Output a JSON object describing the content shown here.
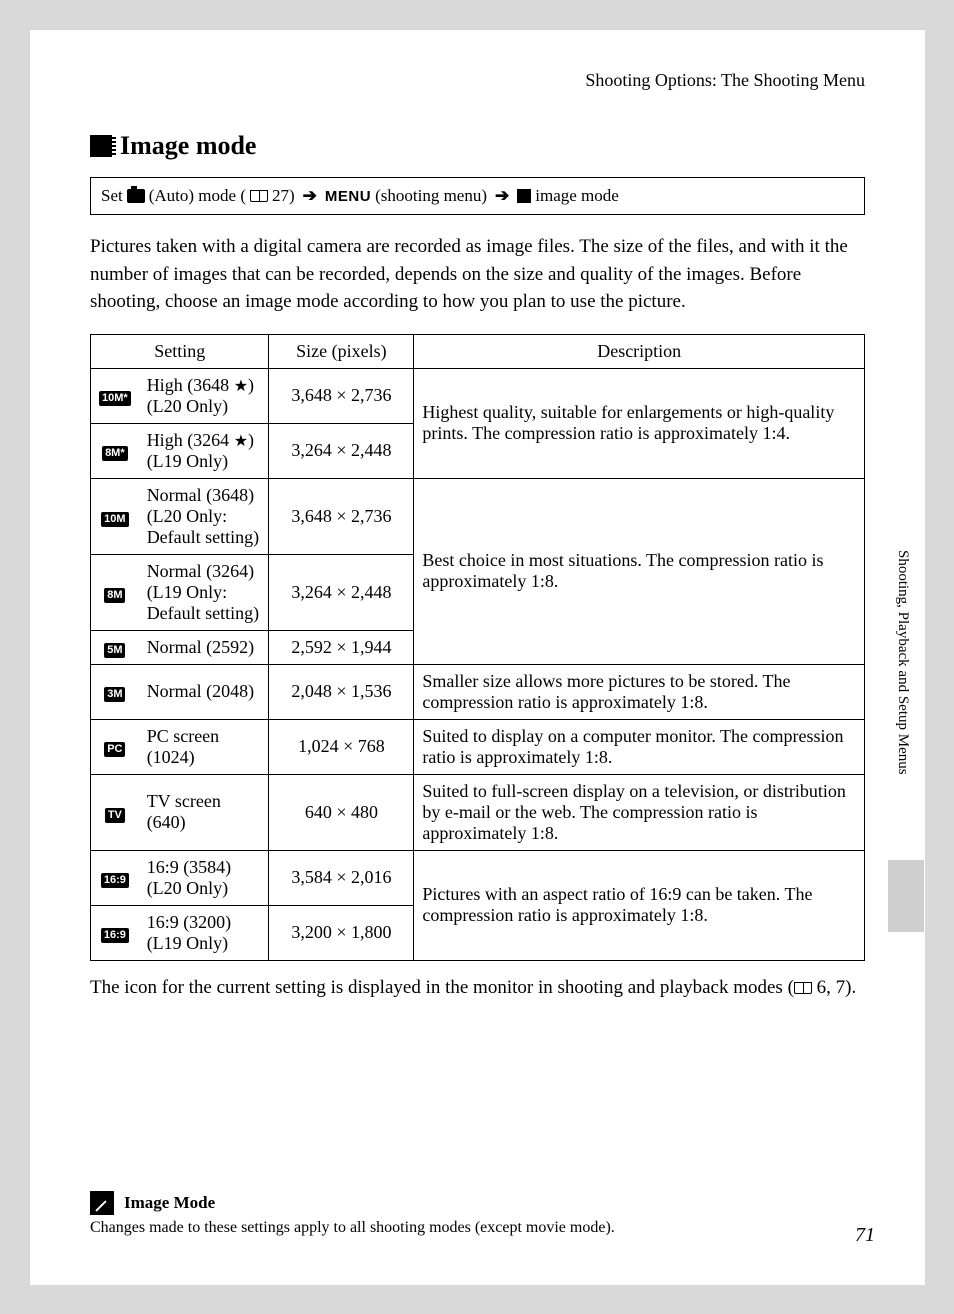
{
  "header": "Shooting Options: The Shooting Menu",
  "title": "Image mode",
  "nav": {
    "prefix": "Set",
    "auto_label": "(Auto) mode (",
    "page_ref": "27)",
    "menu_word": "MENU",
    "shooting_menu": "(shooting menu)",
    "image_mode": "image mode"
  },
  "intro": "Pictures taken with a digital camera are recorded as image files. The size of the files, and with it the number of images that can be recorded, depends on the size and quality of the images. Before shooting, choose an image mode according to how you plan to use the picture.",
  "table": {
    "headers": {
      "setting": "Setting",
      "size": "Size (pixels)",
      "description": "Description"
    },
    "rows": [
      {
        "icon": "10M*",
        "setting_pre": "High (3648 ",
        "star": "★",
        "setting_post": ")\n(L20 Only)",
        "size": "3,648 × 2,736",
        "desc": "Highest quality, suitable for enlargements or high-quality prints. The compression ratio is approximately 1:4.",
        "desc_rowspan": 2
      },
      {
        "icon": "8M*",
        "setting_pre": "High (3264 ",
        "star": "★",
        "setting_post": ")\n(L19 Only)",
        "size": "3,264 × 2,448"
      },
      {
        "icon": "10M",
        "setting": "Normal (3648)\n(L20 Only: Default setting)",
        "size": "3,648 × 2,736",
        "desc": "Best choice in most situations. The compression ratio is approximately 1:8.",
        "desc_rowspan": 3
      },
      {
        "icon": "8M",
        "setting": "Normal (3264)\n(L19 Only: Default setting)",
        "size": "3,264 × 2,448"
      },
      {
        "icon": "5M",
        "setting": "Normal (2592)",
        "size": "2,592 × 1,944"
      },
      {
        "icon": "3M",
        "setting": "Normal (2048)",
        "size": "2,048 × 1,536",
        "desc": "Smaller size allows more pictures to be stored. The compression ratio is approximately 1:8.",
        "desc_rowspan": 1
      },
      {
        "icon": "PC",
        "setting": "PC screen (1024)",
        "size": "1,024 × 768",
        "desc": "Suited to display on a computer monitor. The compression ratio is approximately 1:8.",
        "desc_rowspan": 1
      },
      {
        "icon": "TV",
        "setting": "TV screen (640)",
        "size": "640 × 480",
        "desc": "Suited to full-screen display on a television, or distribution by e-mail or the web. The compression ratio is approximately 1:8.",
        "desc_rowspan": 1
      },
      {
        "icon": "16:9",
        "setting": "16:9 (3584) (L20 Only)",
        "size": "3,584 × 2,016",
        "desc": "Pictures with an aspect ratio of 16:9 can be taken. The compression ratio is approximately 1:8.",
        "desc_rowspan": 2
      },
      {
        "icon": "16:9",
        "setting": "16:9 (3200) (L19 Only)",
        "size": "3,200 × 1,800"
      }
    ]
  },
  "after_table_1": "The icon for the current setting is displayed in the monitor in shooting and playback modes (",
  "after_table_2": "6, 7).",
  "side_text": "Shooting, Playback and Setup Menus",
  "note": {
    "title": "Image Mode",
    "body": "Changes made to these settings apply to all shooting modes (except movie mode)."
  },
  "page_number": "71"
}
